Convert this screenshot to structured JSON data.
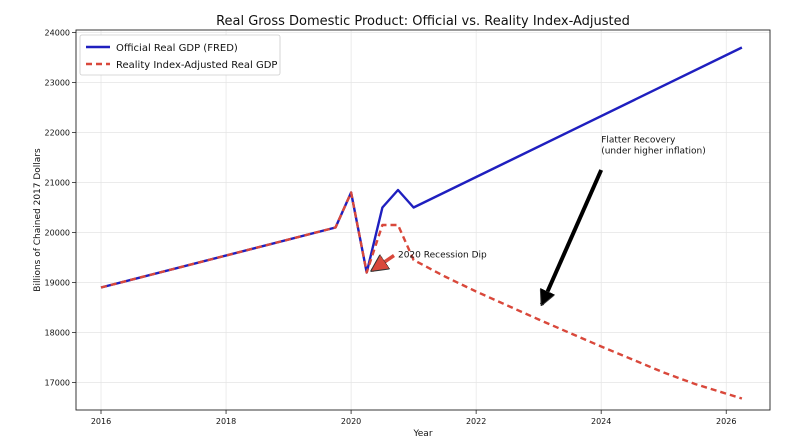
{
  "chart_data": {
    "type": "line",
    "title": "Real Gross Domestic Product: Official vs. Reality Index-Adjusted",
    "xlabel": "Year",
    "ylabel": "Billions of Chained 2017 Dollars",
    "xlim": [
      2015.6,
      2026.7
    ],
    "ylim": [
      16450,
      24050
    ],
    "x_ticks": [
      2016,
      2018,
      2020,
      2022,
      2024,
      2026
    ],
    "y_ticks": [
      17000,
      18000,
      19000,
      20000,
      21000,
      22000,
      23000,
      24000
    ],
    "grid": true,
    "legend_position": "top-left",
    "series": [
      {
        "name": "Official Real GDP (FRED)",
        "color": "#1f1fbf",
        "style": "solid",
        "x": [
          2016.0,
          2019.75,
          2020.0,
          2020.25,
          2020.5,
          2020.75,
          2021.0,
          2026.25
        ],
        "y": [
          18900,
          20100,
          20800,
          19200,
          20500,
          20850,
          20500,
          23700
        ]
      },
      {
        "name": "Reality Index-Adjusted Real GDP",
        "color": "#d9483b",
        "style": "dashed",
        "x": [
          2016.0,
          2019.75,
          2020.0,
          2020.25,
          2020.5,
          2020.75,
          2021.0,
          2021.5,
          2022.0,
          2022.5,
          2023.0,
          2023.5,
          2024.0,
          2024.5,
          2025.0,
          2025.5,
          2026.25
        ],
        "y": [
          18900,
          20100,
          20800,
          19200,
          20150,
          20150,
          19450,
          19120,
          18820,
          18540,
          18260,
          17990,
          17720,
          17460,
          17200,
          16970,
          16680
        ]
      }
    ],
    "annotations": [
      {
        "text": "2020 Recession Dip",
        "x": 2020.75,
        "y": 19560,
        "arrow_to": [
          2020.27,
          19220
        ],
        "arrow_color": "#d9483b"
      },
      {
        "text_lines": [
          "Flatter Recovery",
          "(under higher inflation)"
        ],
        "x": 2024.0,
        "y": 21800,
        "arrow_from": [
          2024.0,
          21250
        ],
        "arrow_to": [
          2023.05,
          18560
        ],
        "arrow_color": "#000000"
      }
    ]
  }
}
